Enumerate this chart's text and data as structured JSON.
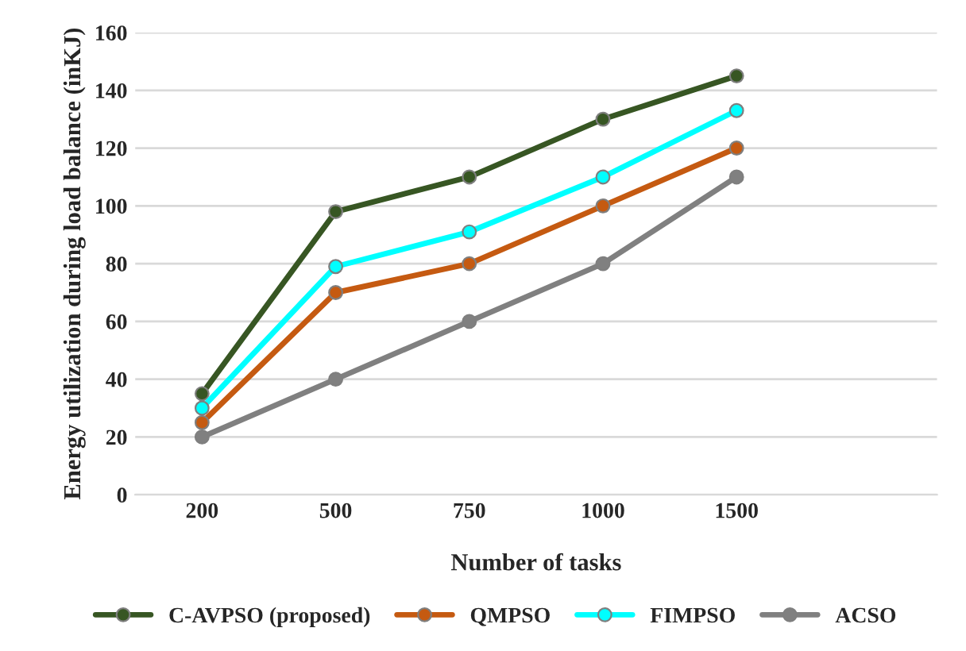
{
  "chart_data": {
    "type": "line",
    "xlabel": "Number of tasks",
    "ylabel": "Energy utilization during load balance (inKJ)",
    "categories": [
      "200",
      "500",
      "750",
      "1000",
      "1500",
      null
    ],
    "series": [
      {
        "name": "C-AVPSO (proposed)",
        "color": "#375623",
        "values": [
          35,
          98,
          110,
          130,
          145,
          null
        ]
      },
      {
        "name": "QMPSO",
        "color": "#c55a11",
        "values": [
          25,
          70,
          80,
          100,
          120,
          null
        ]
      },
      {
        "name": "FIMPSO",
        "color": "#00ffff",
        "values": [
          30,
          79,
          91,
          110,
          133,
          null
        ]
      },
      {
        "name": "ACSO",
        "color": "#808080",
        "values": [
          20,
          40,
          60,
          80,
          110,
          null
        ]
      }
    ],
    "ylim": [
      0,
      160
    ],
    "yticks": [
      0,
      20,
      40,
      60,
      80,
      100,
      120,
      140,
      160
    ],
    "grid": "y",
    "legend": "bottom",
    "marker": "circle",
    "line_style": "solid"
  }
}
